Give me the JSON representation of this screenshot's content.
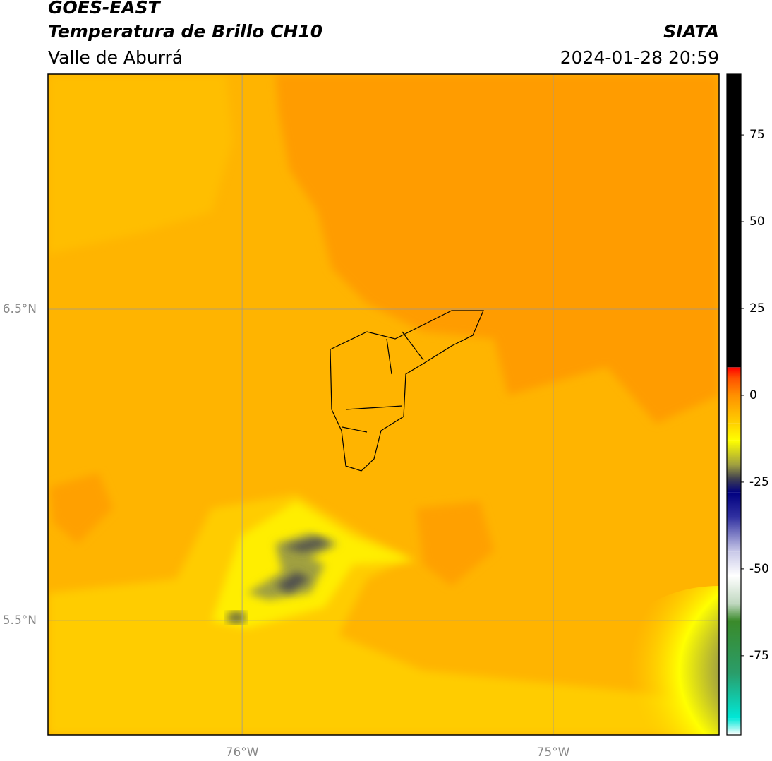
{
  "header": {
    "title": "GOES-EAST",
    "subtitle": "Temperatura de Brillo CH10",
    "region": "Valle de Aburrá",
    "source": "SIATA",
    "datetime": "2024-01-28 20:59"
  },
  "map": {
    "xlim": [
      -76.624,
      -74.467
    ],
    "ylim": [
      5.133,
      7.255
    ],
    "xticks": [
      {
        "value": -76,
        "label": "76°W"
      },
      {
        "value": -75,
        "label": "75°W"
      }
    ],
    "yticks": [
      {
        "value": 6.5,
        "label": "6.5°N"
      },
      {
        "value": 5.5,
        "label": "5.5°N"
      }
    ],
    "grid": true
  },
  "colorbar": {
    "lim": [
      -97.8,
      92.5
    ],
    "ticks": [
      75,
      50,
      25,
      0,
      -25,
      -50,
      -75
    ],
    "stops": [
      {
        "value": -97.8,
        "color": "#ffffff"
      },
      {
        "value": -93,
        "color": "#00e8d8"
      },
      {
        "value": -80,
        "color": "#2a9d6a"
      },
      {
        "value": -65,
        "color": "#3a8a2a"
      },
      {
        "value": -60,
        "color": "#c0d8c0"
      },
      {
        "value": -52,
        "color": "#ffffff"
      },
      {
        "value": -45,
        "color": "#c8c8e8"
      },
      {
        "value": -35,
        "color": "#3030a0"
      },
      {
        "value": -28,
        "color": "#000080"
      },
      {
        "value": -24,
        "color": "#404050"
      },
      {
        "value": -20,
        "color": "#a0a040"
      },
      {
        "value": -13,
        "color": "#ffff00"
      },
      {
        "value": -8,
        "color": "#ffd000"
      },
      {
        "value": 0,
        "color": "#ff9000"
      },
      {
        "value": 5,
        "color": "#ff5000"
      },
      {
        "value": 8,
        "color": "#ff0000"
      },
      {
        "value": 8.1,
        "color": "#000000"
      },
      {
        "value": 92.5,
        "color": "#000000"
      }
    ]
  }
}
